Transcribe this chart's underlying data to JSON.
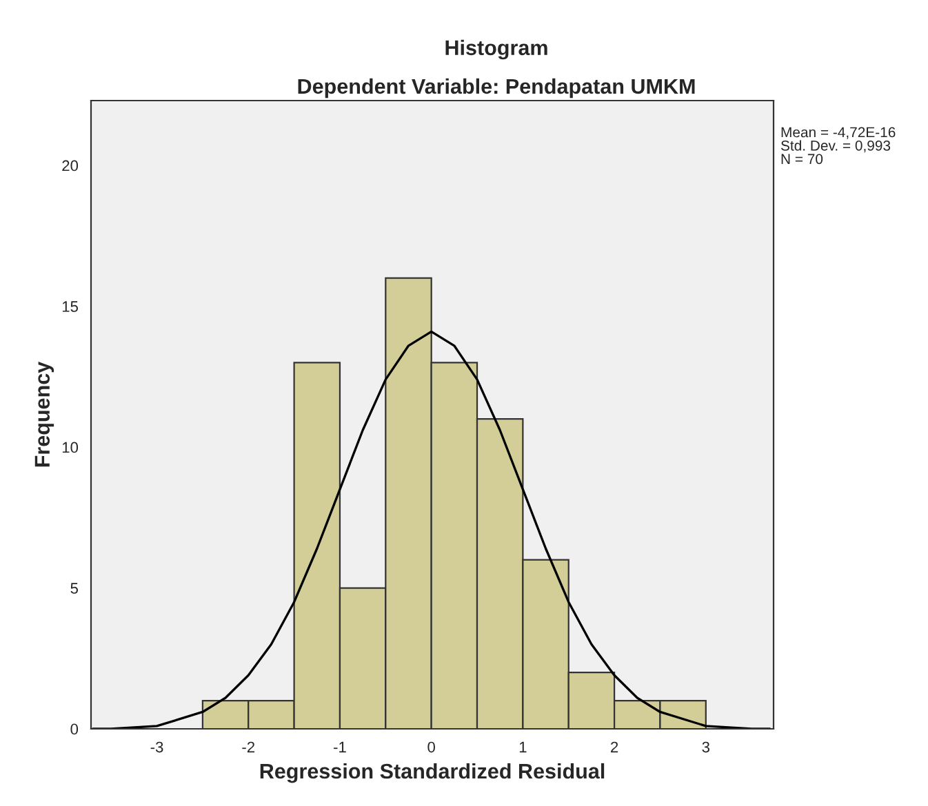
{
  "chart_data": {
    "type": "histogram",
    "title": "Histogram",
    "subtitle": "Dependent Variable: Pendapatan UMKM",
    "xlabel": "Regression Standardized Residual",
    "ylabel": "Frequency",
    "bins": [
      -2.5,
      -2,
      -1.5,
      -1,
      -0.5,
      0,
      0.5,
      1,
      1.5,
      2,
      2.5,
      3
    ],
    "values": [
      1,
      1,
      13,
      5,
      16,
      13,
      11,
      6,
      2,
      1,
      1
    ],
    "color": "#d3ce98",
    "series": [
      {
        "type": "line",
        "color": "#000000",
        "x": [
          -3.7,
          -3.5,
          -3,
          -2.5,
          -2.25,
          -2,
          -1.75,
          -1.5,
          -1.25,
          -1,
          -0.75,
          -0.5,
          -0.25,
          0,
          0.25,
          0.5,
          0.75,
          1,
          1.25,
          1.5,
          1.75,
          2,
          2.25,
          2.5,
          3,
          3.5,
          3.7
        ],
        "values": [
          0,
          0,
          0.1,
          0.6,
          1.1,
          1.9,
          3,
          4.5,
          6.4,
          8.5,
          10.6,
          12.4,
          13.6,
          14.1,
          13.6,
          12.4,
          10.6,
          8.5,
          6.4,
          4.5,
          3,
          1.9,
          1.1,
          0.6,
          0.1,
          0,
          0
        ]
      }
    ],
    "xlim": [
      -3.72,
      3.74
    ],
    "xticks": [
      -3,
      -2,
      -1,
      0,
      1,
      2,
      3
    ],
    "ylim": [
      0,
      22.3
    ],
    "yticks": [
      0,
      5,
      10,
      15,
      20
    ],
    "grid": false,
    "legend": false,
    "annotations": [
      "Mean = -4,72E-16",
      "Std. Dev. = 0,993",
      "N = 70"
    ]
  }
}
